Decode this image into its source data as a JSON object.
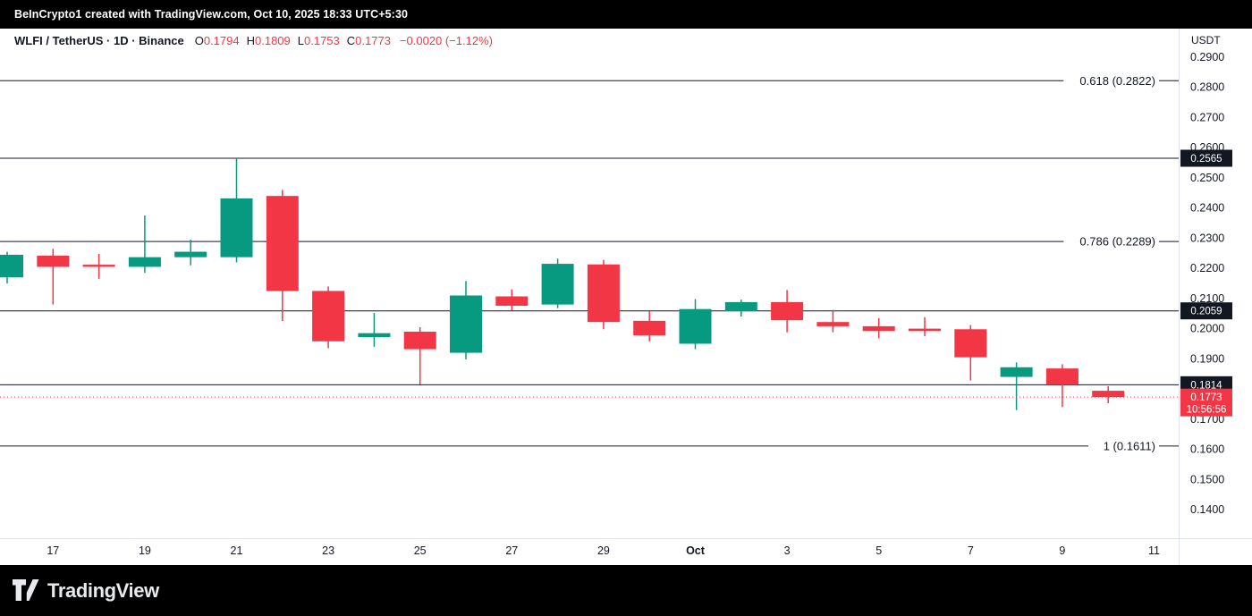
{
  "top_bar": {
    "attribution": "BeInCrypto1 created with TradingView.com, Oct 10, 2025 18:33 UTC+5:30"
  },
  "header": {
    "symbol": "WLFI / TetherUS · 1D · Binance",
    "ohlc": [
      {
        "label": "O",
        "value": "0.1794"
      },
      {
        "label": "H",
        "value": "0.1809"
      },
      {
        "label": "L",
        "value": "0.1753"
      },
      {
        "label": "C",
        "value": "0.1773"
      }
    ],
    "change": "−0.0020 (−1.12%)"
  },
  "price_axis": {
    "currency_label": "USDT",
    "ticks": [
      "0.2900",
      "0.2800",
      "0.2700",
      "0.2600",
      "0.2500",
      "0.2400",
      "0.2300",
      "0.2200",
      "0.2100",
      "0.2000",
      "0.1900",
      "0.1700",
      "0.1600",
      "0.1500",
      "0.1400"
    ],
    "current_price_badge": {
      "price": "0.1773",
      "countdown": "10:56:56",
      "color": "#f23645"
    }
  },
  "time_axis": {
    "ticks": [
      {
        "index": 1,
        "label": "17"
      },
      {
        "index": 3,
        "label": "19"
      },
      {
        "index": 5,
        "label": "21"
      },
      {
        "index": 7,
        "label": "23"
      },
      {
        "index": 9,
        "label": "25"
      },
      {
        "index": 11,
        "label": "27"
      },
      {
        "index": 13,
        "label": "29"
      },
      {
        "index": 15,
        "label": "Oct",
        "bold": true
      },
      {
        "index": 17,
        "label": "3"
      },
      {
        "index": 19,
        "label": "5"
      },
      {
        "index": 21,
        "label": "7"
      },
      {
        "index": 23,
        "label": "9"
      },
      {
        "index": 25,
        "label": "11"
      }
    ]
  },
  "chart_data": {
    "type": "candlestick",
    "title": "WLFI / TetherUS · 1D · Binance",
    "ylabel": "Price (USDT)",
    "ylim": [
      0.14,
      0.29
    ],
    "grid": false,
    "colors": {
      "up": "#089981",
      "down": "#f23645",
      "level": "#131722"
    },
    "current_price": 0.1773,
    "levels": [
      {
        "price": 0.2822,
        "label": "0.618 (0.2822)",
        "kind": "fib"
      },
      {
        "price": 0.2565,
        "badge": "0.2565",
        "kind": "line"
      },
      {
        "price": 0.2289,
        "label": "0.786 (0.2289)",
        "kind": "fib"
      },
      {
        "price": 0.2059,
        "badge": "0.2059",
        "kind": "line"
      },
      {
        "price": 0.1814,
        "badge": "0.1814",
        "kind": "line"
      },
      {
        "price": 0.1611,
        "label": "1 (0.1611)",
        "kind": "fib"
      }
    ],
    "candles": [
      {
        "date": "Sep 16",
        "o": 0.217,
        "h": 0.2255,
        "l": 0.215,
        "c": 0.2245
      },
      {
        "date": "Sep 17",
        "o": 0.2242,
        "h": 0.2265,
        "l": 0.208,
        "c": 0.2205
      },
      {
        "date": "Sep 18",
        "o": 0.2212,
        "h": 0.2248,
        "l": 0.2165,
        "c": 0.2205
      },
      {
        "date": "Sep 19",
        "o": 0.2205,
        "h": 0.2375,
        "l": 0.2185,
        "c": 0.2237
      },
      {
        "date": "Sep 20",
        "o": 0.2237,
        "h": 0.2295,
        "l": 0.221,
        "c": 0.2255
      },
      {
        "date": "Sep 21",
        "o": 0.2237,
        "h": 0.2565,
        "l": 0.222,
        "c": 0.2432
      },
      {
        "date": "Sep 22",
        "o": 0.244,
        "h": 0.246,
        "l": 0.2025,
        "c": 0.2125
      },
      {
        "date": "Sep 23",
        "o": 0.2125,
        "h": 0.214,
        "l": 0.1935,
        "c": 0.1958
      },
      {
        "date": "Sep 24",
        "o": 0.1972,
        "h": 0.2052,
        "l": 0.194,
        "c": 0.1985
      },
      {
        "date": "Sep 25",
        "o": 0.199,
        "h": 0.2005,
        "l": 0.1815,
        "c": 0.1932
      },
      {
        "date": "Sep 26",
        "o": 0.192,
        "h": 0.2158,
        "l": 0.1898,
        "c": 0.211
      },
      {
        "date": "Sep 27",
        "o": 0.2107,
        "h": 0.213,
        "l": 0.206,
        "c": 0.2076
      },
      {
        "date": "Sep 28",
        "o": 0.208,
        "h": 0.2232,
        "l": 0.2068,
        "c": 0.2215
      },
      {
        "date": "Sep 29",
        "o": 0.2213,
        "h": 0.2228,
        "l": 0.1998,
        "c": 0.2022
      },
      {
        "date": "Sep 30",
        "o": 0.2026,
        "h": 0.2058,
        "l": 0.1958,
        "c": 0.1978
      },
      {
        "date": "Oct 1",
        "o": 0.195,
        "h": 0.2098,
        "l": 0.1932,
        "c": 0.2065
      },
      {
        "date": "Oct 2",
        "o": 0.2058,
        "h": 0.2096,
        "l": 0.204,
        "c": 0.2088
      },
      {
        "date": "Oct 3",
        "o": 0.2088,
        "h": 0.2128,
        "l": 0.1988,
        "c": 0.2028
      },
      {
        "date": "Oct 4",
        "o": 0.2022,
        "h": 0.2062,
        "l": 0.1988,
        "c": 0.2008
      },
      {
        "date": "Oct 5",
        "o": 0.2008,
        "h": 0.2035,
        "l": 0.1968,
        "c": 0.1992
      },
      {
        "date": "Oct 6",
        "o": 0.2,
        "h": 0.2038,
        "l": 0.1975,
        "c": 0.1992
      },
      {
        "date": "Oct 7",
        "o": 0.1998,
        "h": 0.2012,
        "l": 0.1828,
        "c": 0.1905
      },
      {
        "date": "Oct 8",
        "o": 0.184,
        "h": 0.1888,
        "l": 0.173,
        "c": 0.1872
      },
      {
        "date": "Oct 9",
        "o": 0.1868,
        "h": 0.1882,
        "l": 0.174,
        "c": 0.1814
      },
      {
        "date": "Oct 10",
        "o": 0.1794,
        "h": 0.1809,
        "l": 0.1753,
        "c": 0.1773
      }
    ]
  },
  "footer": {
    "brand": "TradingView"
  }
}
